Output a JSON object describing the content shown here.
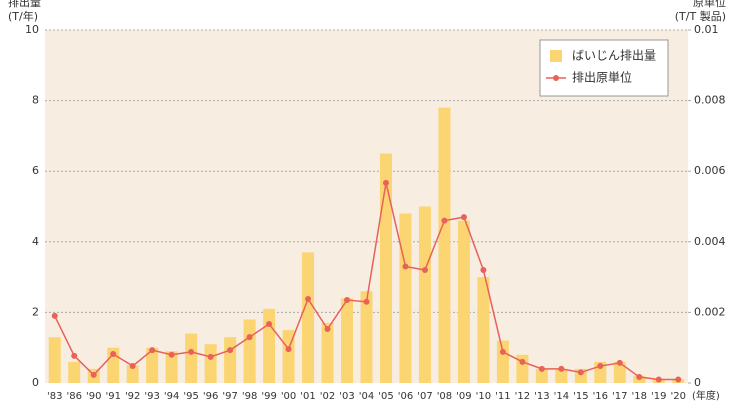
{
  "chart_data": {
    "type": "bar_line",
    "ylabel": [
      "排出量",
      "(T/年)"
    ],
    "y2label": [
      "原単位",
      "(T/T 製品)"
    ],
    "xlabel": "(年度)",
    "categories": [
      "'83",
      "'86",
      "'90",
      "'91",
      "'92",
      "'93",
      "'94",
      "'95",
      "'96",
      "'97",
      "'98",
      "'99",
      "'00",
      "'01",
      "'02",
      "'03",
      "'04",
      "'05",
      "'06",
      "'07",
      "'08",
      "'09",
      "'10",
      "'11",
      "'12",
      "'13",
      "'14",
      "'15",
      "'16",
      "'17",
      "'18",
      "'19",
      "'20"
    ],
    "series": [
      {
        "name": "ばいじん排出量",
        "color": "#fcd573",
        "kind": "bar",
        "values": [
          1.3,
          0.6,
          0.4,
          1.0,
          0.5,
          1.0,
          0.9,
          1.4,
          1.1,
          1.3,
          1.8,
          2.1,
          1.5,
          3.7,
          1.7,
          2.4,
          2.6,
          6.5,
          4.8,
          5.0,
          7.8,
          4.6,
          3.0,
          1.2,
          0.8,
          0.4,
          0.4,
          0.4,
          0.6,
          0.6,
          0.2,
          0.1,
          0.1
        ]
      },
      {
        "name": "排出原単位",
        "color": "#e8615a",
        "kind": "line",
        "axis": "y2",
        "values": [
          0.0019,
          0.00077,
          0.00023,
          0.00082,
          0.00048,
          0.00093,
          0.0008,
          0.00088,
          0.00074,
          0.00093,
          0.0013,
          0.00167,
          0.00096,
          0.00238,
          0.00153,
          0.00235,
          0.0023,
          0.00567,
          0.0033,
          0.0032,
          0.0046,
          0.0047,
          0.0032,
          0.00088,
          0.0006,
          0.0004,
          0.0004,
          0.0003,
          0.00048,
          0.00057,
          0.00017,
          0.0001,
          0.0001
        ]
      }
    ],
    "ylim": [
      0,
      10
    ],
    "yticks": [
      0,
      2,
      4,
      6,
      8,
      10
    ],
    "y2lim": [
      0,
      0.01
    ],
    "y2ticks": [
      0,
      0.002,
      0.004,
      0.006,
      0.008,
      0.01
    ],
    "grid": true,
    "legend": "top-right",
    "background": "#f7ede0"
  }
}
